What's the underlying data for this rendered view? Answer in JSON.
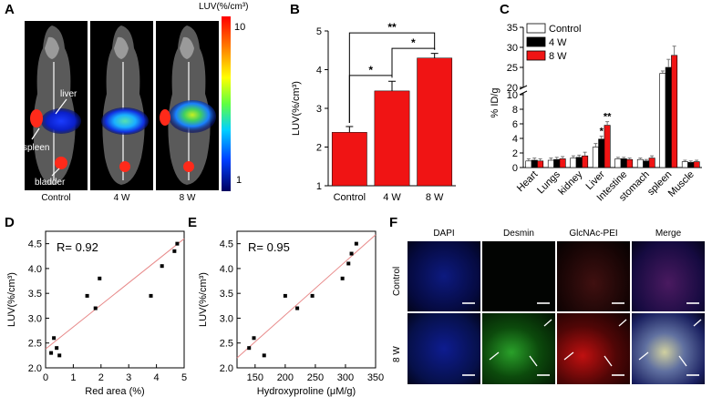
{
  "panels": {
    "a": {
      "letter": "A",
      "colorbar_title": "LUV(%/cm³)",
      "colorbar_max": "10",
      "colorbar_min": "1",
      "organ_labels": {
        "liver": "liver",
        "spleen": "spleen",
        "bladder": "bladder"
      },
      "groups": [
        "Control",
        "4 W",
        "8 W"
      ]
    },
    "b": {
      "letter": "B"
    },
    "c": {
      "letter": "C"
    },
    "d": {
      "letter": "D"
    },
    "e": {
      "letter": "E"
    },
    "f": {
      "letter": "F",
      "columns": [
        "DAPI",
        "Desmin",
        "GlcNAc-PEI",
        "Merge"
      ],
      "rows": [
        "Control",
        "8 W"
      ]
    }
  },
  "colors": {
    "bar_red": "#f01414",
    "fit_line": "#e88a8a",
    "bar_black": "#000000",
    "bar_white": "#ffffff"
  },
  "chart_data": [
    {
      "id": "B",
      "type": "bar",
      "categories": [
        "Control",
        "4 W",
        "8 W"
      ],
      "values": [
        2.38,
        3.45,
        4.3
      ],
      "errors": [
        0.15,
        0.25,
        0.12
      ],
      "ylabel": "LUV(%/cm³)",
      "ylim": [
        1,
        5
      ],
      "yticks": [
        1,
        2,
        3,
        4,
        5
      ],
      "significance": [
        {
          "from": 0,
          "to": 1,
          "label": "*"
        },
        {
          "from": 1,
          "to": 2,
          "label": "*"
        },
        {
          "from": 0,
          "to": 2,
          "label": "**"
        }
      ]
    },
    {
      "id": "C",
      "type": "bar",
      "categories": [
        "Heart",
        "Lungs",
        "kidney",
        "Liver",
        "Intestine",
        "stomach",
        "spleen",
        "Muscle"
      ],
      "series": [
        {
          "name": "Control",
          "values": [
            0.9,
            1.0,
            1.3,
            2.8,
            1.2,
            1.1,
            23.5,
            0.8
          ],
          "errors": [
            0.3,
            0.3,
            0.3,
            0.5,
            0.2,
            0.2,
            0.6,
            0.2
          ]
        },
        {
          "name": "4 W",
          "values": [
            1.0,
            1.1,
            1.4,
            3.9,
            1.2,
            0.9,
            25.0,
            0.7
          ],
          "errors": [
            0.3,
            0.3,
            0.3,
            0.4,
            0.2,
            0.2,
            2.0,
            0.2
          ]
        },
        {
          "name": "8 W",
          "values": [
            0.9,
            1.2,
            1.6,
            5.8,
            1.1,
            1.3,
            28.0,
            0.8
          ],
          "errors": [
            0.3,
            0.3,
            0.5,
            0.5,
            0.2,
            0.3,
            2.3,
            0.2
          ]
        }
      ],
      "ylabel": "% ID/g",
      "axis_break": [
        10,
        20
      ],
      "yticks_low": [
        0,
        2,
        4,
        6,
        8,
        10
      ],
      "yticks_high": [
        20,
        25,
        30,
        35
      ],
      "annotations": [
        {
          "category": "Liver",
          "series": "4 W",
          "label": "*"
        },
        {
          "category": "Liver",
          "series": "8 W",
          "label": "**"
        }
      ],
      "legend_position": "top-left"
    },
    {
      "id": "D",
      "type": "scatter",
      "x": [
        0.2,
        0.3,
        0.4,
        0.5,
        1.5,
        1.8,
        1.95,
        3.8,
        4.2,
        4.65,
        4.75
      ],
      "y": [
        2.3,
        2.6,
        2.4,
        2.25,
        3.45,
        3.2,
        3.8,
        3.45,
        4.05,
        4.35,
        4.5
      ],
      "fit": {
        "x": [
          0,
          5
        ],
        "y": [
          2.38,
          4.6
        ]
      },
      "annotation": "R= 0.92",
      "xlabel": "Red area (%)",
      "ylabel": "LUV(%/cm³)",
      "xlim": [
        0,
        5
      ],
      "ylim": [
        2.0,
        4.75
      ],
      "xticks": [
        0,
        1,
        2,
        3,
        4,
        5
      ],
      "yticks": [
        2.0,
        2.5,
        3.0,
        3.5,
        4.0,
        4.5
      ]
    },
    {
      "id": "E",
      "type": "scatter",
      "x": [
        140,
        148,
        165,
        200,
        220,
        245,
        295,
        305,
        310,
        318
      ],
      "y": [
        2.4,
        2.6,
        2.25,
        3.45,
        3.2,
        3.45,
        3.8,
        4.1,
        4.3,
        4.5
      ],
      "fit": {
        "x": [
          120,
          350
        ],
        "y": [
          2.2,
          4.68
        ]
      },
      "annotation": "R= 0.95",
      "xlabel": "Hydroxyproline (μM/g)",
      "ylabel": "LUV(%/cm³)",
      "xlim": [
        120,
        350
      ],
      "ylim": [
        2.0,
        4.75
      ],
      "xticks": [
        150,
        200,
        250,
        300,
        350
      ],
      "yticks": [
        2.0,
        2.5,
        3.0,
        3.5,
        4.0,
        4.5
      ]
    }
  ]
}
